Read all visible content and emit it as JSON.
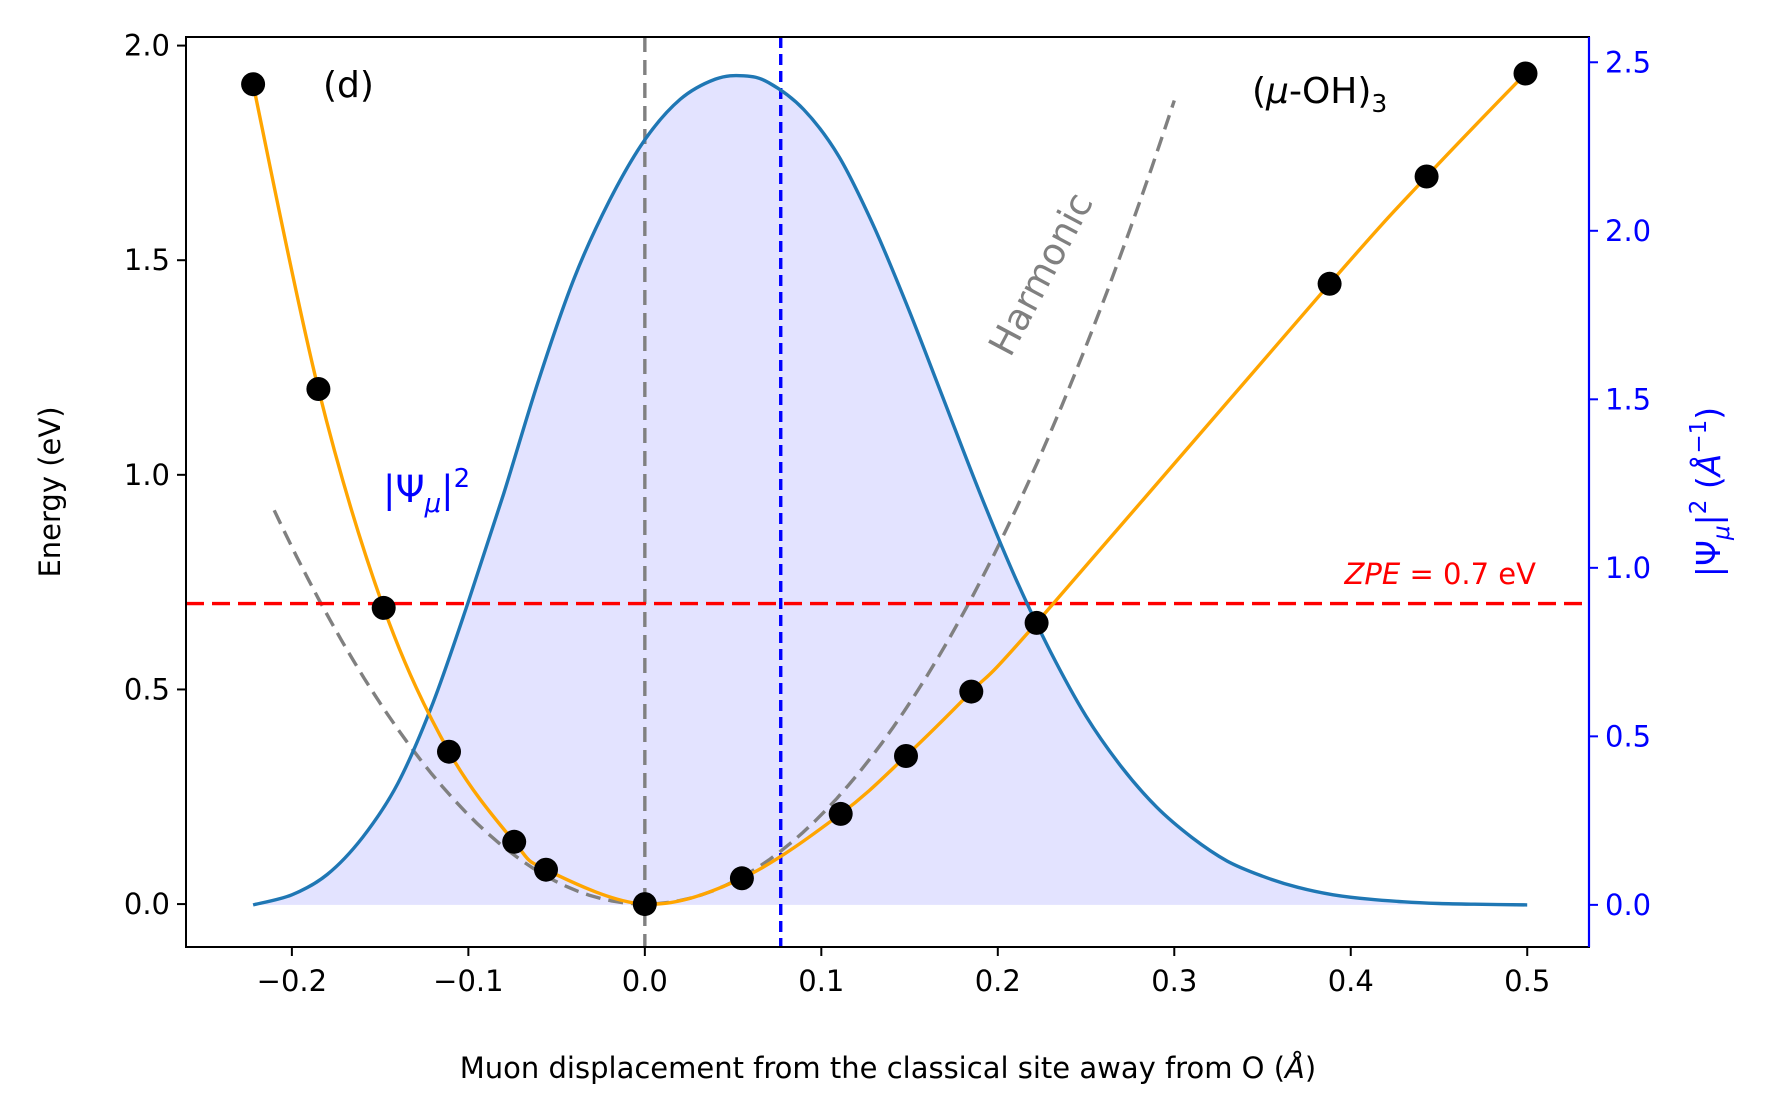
{
  "chart_data": {
    "type": "line",
    "panel_label": "(d)",
    "site_label": {
      "main": "(",
      "mu": "μ",
      "rest": "-OH)",
      "sub": "3"
    },
    "xlabel": {
      "main": "Muon displacement from the classical site away from O (",
      "unit": "Å",
      "close": ")"
    },
    "ylabel_left": "Energy (eV)",
    "ylabel_right": {
      "open": "|Ψ",
      "sub": "μ",
      "sup": "2",
      "unit_open": " (",
      "unit": "Å",
      "unit_sup": "−1",
      "unit_close": ")"
    },
    "xlim": [
      -0.26,
      0.535
    ],
    "ylim_left": [
      -0.1,
      2.02
    ],
    "ylim_right": [
      -0.125,
      2.575
    ],
    "x_ticks": [
      -0.2,
      -0.1,
      0.0,
      0.1,
      0.2,
      0.3,
      0.4,
      0.5
    ],
    "x_tick_labels": [
      "−0.2",
      "−0.1",
      "0.0",
      "0.1",
      "0.2",
      "0.3",
      "0.4",
      "0.5"
    ],
    "y_ticks_left": [
      0.0,
      0.5,
      1.0,
      1.5,
      2.0
    ],
    "y_tick_labels_left": [
      "0.0",
      "0.5",
      "1.0",
      "1.5",
      "2.0"
    ],
    "y_ticks_right": [
      0.0,
      0.5,
      1.0,
      1.5,
      2.0,
      2.5
    ],
    "y_tick_labels_right": [
      "0.0",
      "0.5",
      "1.0",
      "1.5",
      "2.0",
      "2.5"
    ],
    "grid": false,
    "colors": {
      "points": "#000000",
      "fit": "#ffa500",
      "harmonic": "#808080",
      "wavefunction": "#1f77b4",
      "wavefunction_fill": "#e3e3ff",
      "zpe": "#ff0000",
      "mean_position": "#0000ff",
      "right_axis": "#0000ff"
    },
    "energy_points": {
      "x": [
        -0.222,
        -0.185,
        -0.148,
        -0.111,
        -0.074,
        -0.056,
        0.0,
        0.055,
        0.111,
        0.148,
        0.185,
        0.222,
        0.388,
        0.443,
        0.499
      ],
      "y": [
        1.91,
        1.2,
        0.69,
        0.355,
        0.145,
        0.08,
        0.0,
        0.06,
        0.21,
        0.345,
        0.495,
        0.655,
        1.445,
        1.695,
        1.935
      ]
    },
    "harmonic": {
      "label": "Harmonic",
      "curvature": 20.8,
      "x_range": [
        -0.21,
        0.3
      ]
    },
    "wavefunction": {
      "label": {
        "open": "|Ψ",
        "sub": "μ",
        "close": "|",
        "sup": "2"
      },
      "x": [
        -0.222,
        -0.2,
        -0.18,
        -0.16,
        -0.14,
        -0.12,
        -0.1,
        -0.08,
        -0.06,
        -0.04,
        -0.02,
        0.0,
        0.02,
        0.04,
        0.056,
        0.07,
        0.09,
        0.11,
        0.13,
        0.15,
        0.17,
        0.19,
        0.21,
        0.23,
        0.25,
        0.27,
        0.29,
        0.31,
        0.33,
        0.35,
        0.37,
        0.39,
        0.41,
        0.43,
        0.45,
        0.47,
        0.5
      ],
      "y": [
        0.0,
        0.03,
        0.09,
        0.2,
        0.36,
        0.6,
        0.9,
        1.22,
        1.56,
        1.86,
        2.09,
        2.27,
        2.39,
        2.45,
        2.46,
        2.44,
        2.36,
        2.22,
        2.01,
        1.76,
        1.49,
        1.22,
        0.97,
        0.75,
        0.56,
        0.41,
        0.29,
        0.2,
        0.13,
        0.085,
        0.052,
        0.03,
        0.017,
        0.009,
        0.004,
        0.002,
        0.0
      ]
    },
    "zpe": {
      "value": 0.7,
      "label_var": "ZPE",
      "label_rest": " = 0.7 eV"
    },
    "classical_site_x": 0.0,
    "mean_position_x": 0.077
  }
}
